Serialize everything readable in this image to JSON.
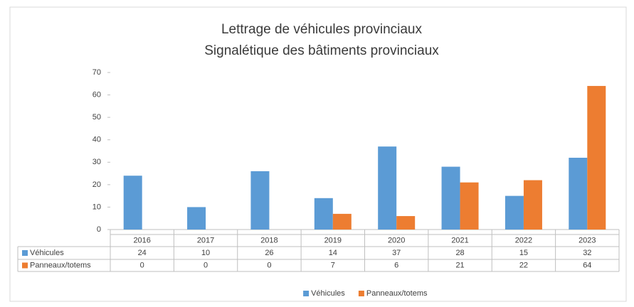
{
  "chart_data": {
    "type": "bar",
    "title": [
      "Lettrage de véhicules provinciaux",
      "Signalétique des bâtiments provinciaux"
    ],
    "categories": [
      "2016",
      "2017",
      "2018",
      "2019",
      "2020",
      "2021",
      "2022",
      "2023"
    ],
    "series": [
      {
        "name": "Véhicules",
        "color": "#5b9bd5",
        "values": [
          24,
          10,
          26,
          14,
          37,
          28,
          15,
          32
        ]
      },
      {
        "name": "Panneaux/totems",
        "color": "#ed7d31",
        "values": [
          0,
          0,
          0,
          7,
          6,
          21,
          22,
          64
        ]
      }
    ],
    "ylim": [
      0,
      70
    ],
    "yticks": [
      0,
      10,
      20,
      30,
      40,
      50,
      60,
      70
    ],
    "grid": false,
    "legend": "bottom"
  }
}
